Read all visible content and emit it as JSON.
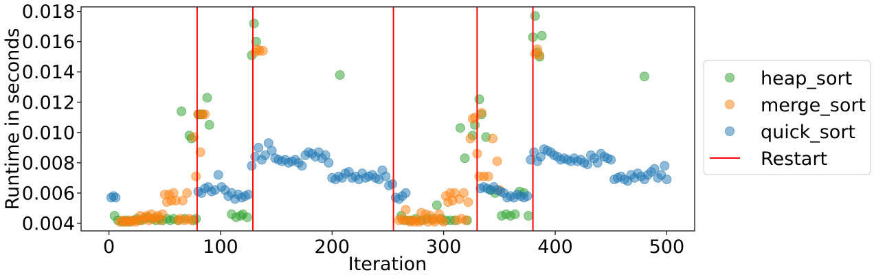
{
  "chart_data": {
    "type": "scatter",
    "title": "",
    "xlabel": "Iteration",
    "ylabel": "Runtime in seconds",
    "xlim": [
      -25,
      525
    ],
    "ylim": [
      0.0035,
      0.0183
    ],
    "xticks": [
      0,
      100,
      200,
      300,
      400,
      500
    ],
    "xtick_labels": [
      "0",
      "100",
      "200",
      "300",
      "400",
      "500"
    ],
    "yticks": [
      0.004,
      0.006,
      0.008,
      0.01,
      0.012,
      0.014,
      0.016,
      0.018
    ],
    "ytick_labels": [
      "0.004",
      "0.006",
      "0.008",
      "0.010",
      "0.012",
      "0.014",
      "0.016",
      "0.018"
    ],
    "grid": false,
    "legend_position": "outside-right",
    "series": [
      {
        "name": "heap_sort",
        "color": "#2ca02c",
        "x": [
          5,
          8,
          12,
          15,
          18,
          22,
          25,
          28,
          32,
          35,
          38,
          42,
          45,
          48,
          52,
          55,
          58,
          62,
          65,
          68,
          72,
          74,
          76,
          78,
          80,
          82,
          84,
          88,
          90,
          110,
          114,
          118,
          120,
          124,
          128,
          130,
          132,
          207,
          262,
          266,
          270,
          275,
          280,
          285,
          290,
          294,
          298,
          302,
          306,
          310,
          315,
          319,
          321,
          326,
          328,
          332,
          334,
          338,
          342,
          346,
          352,
          356,
          360,
          364,
          368,
          372,
          376,
          380,
          382,
          384,
          386,
          388,
          480
        ],
        "y": [
          0.0045,
          0.0042,
          0.0041,
          0.0042,
          0.0041,
          0.0042,
          0.0043,
          0.0042,
          0.0043,
          0.0044,
          0.0043,
          0.0042,
          0.0043,
          0.0042,
          0.0043,
          0.0042,
          0.0043,
          0.0042,
          0.0114,
          0.0043,
          0.0098,
          0.0096,
          0.0042,
          0.0043,
          0.0112,
          0.0112,
          0.0112,
          0.0123,
          0.0105,
          0.0046,
          0.0044,
          0.0045,
          0.0046,
          0.0044,
          0.0151,
          0.0172,
          0.016,
          0.0138,
          0.0045,
          0.0042,
          0.0042,
          0.0043,
          0.0042,
          0.0043,
          0.0043,
          0.0052,
          0.0043,
          0.0042,
          0.0042,
          0.0042,
          0.0103,
          0.0083,
          0.0042,
          0.0098,
          0.0105,
          0.0122,
          0.0112,
          0.0097,
          0.0062,
          0.006,
          0.0045,
          0.0046,
          0.0045,
          0.0046,
          0.0061,
          0.006,
          0.0045,
          0.0163,
          0.0177,
          0.0153,
          0.015,
          0.0164,
          0.0137
        ]
      },
      {
        "name": "merge_sort",
        "color": "#ff7f0e",
        "x": [
          10,
          12,
          14,
          16,
          18,
          20,
          22,
          24,
          26,
          28,
          30,
          32,
          34,
          36,
          38,
          40,
          42,
          44,
          46,
          48,
          50,
          52,
          54,
          56,
          58,
          60,
          62,
          64,
          66,
          68,
          70,
          72,
          74,
          76,
          78,
          80,
          82,
          84,
          86,
          131,
          133,
          135,
          138,
          260,
          262,
          264,
          266,
          268,
          270,
          272,
          274,
          276,
          278,
          280,
          282,
          284,
          286,
          288,
          290,
          292,
          294,
          296,
          298,
          300,
          302,
          304,
          306,
          308,
          310,
          312,
          314,
          316,
          318,
          320,
          322,
          324,
          326,
          328,
          330,
          332,
          334,
          336,
          340,
          344,
          348,
          350,
          382,
          384,
          386
        ],
        "y": [
          0.0041,
          0.0042,
          0.0041,
          0.0041,
          0.0042,
          0.0041,
          0.0042,
          0.0041,
          0.0042,
          0.0045,
          0.0042,
          0.0044,
          0.0045,
          0.0042,
          0.0046,
          0.0043,
          0.0044,
          0.0045,
          0.0042,
          0.0046,
          0.0059,
          0.0054,
          0.0059,
          0.0055,
          0.006,
          0.0055,
          0.0042,
          0.0043,
          0.0055,
          0.0042,
          0.006,
          0.0043,
          0.0042,
          0.0097,
          0.0071,
          0.0112,
          0.0087,
          0.0112,
          0.0112,
          0.0153,
          0.0155,
          0.0154,
          0.0154,
          0.0042,
          0.0043,
          0.0042,
          0.0049,
          0.0042,
          0.0041,
          0.0042,
          0.0041,
          0.0042,
          0.0041,
          0.0047,
          0.0042,
          0.0046,
          0.0041,
          0.0045,
          0.0042,
          0.0041,
          0.0043,
          0.0046,
          0.0042,
          0.0041,
          0.0058,
          0.0054,
          0.006,
          0.0055,
          0.006,
          0.0042,
          0.0056,
          0.0043,
          0.006,
          0.0042,
          0.0054,
          0.0096,
          0.0109,
          0.011,
          0.0086,
          0.0071,
          0.0113,
          0.0071,
          0.0071,
          0.0096,
          0.0081,
          0.0062,
          0.0152,
          0.0155,
          0.0151
        ]
      },
      {
        "name": "quick_sort",
        "color": "#1f77b4",
        "x": [
          2,
          4,
          6,
          80,
          83,
          86,
          89,
          92,
          95,
          98,
          101,
          104,
          107,
          110,
          113,
          116,
          119,
          122,
          125,
          128,
          131,
          134,
          137,
          140,
          143,
          146,
          149,
          152,
          155,
          158,
          161,
          164,
          167,
          170,
          173,
          176,
          179,
          182,
          185,
          188,
          191,
          194,
          197,
          200,
          203,
          206,
          209,
          212,
          215,
          218,
          221,
          224,
          227,
          230,
          233,
          236,
          239,
          242,
          245,
          248,
          251,
          254,
          257,
          260,
          263,
          266,
          333,
          336,
          339,
          342,
          345,
          348,
          351,
          354,
          357,
          360,
          363,
          366,
          369,
          372,
          375,
          378,
          381,
          384,
          387,
          390,
          393,
          396,
          399,
          402,
          405,
          408,
          411,
          414,
          417,
          420,
          423,
          426,
          429,
          432,
          435,
          438,
          441,
          444,
          447,
          450,
          453,
          456,
          459,
          462,
          465,
          468,
          471,
          474,
          477,
          480,
          483,
          486,
          489,
          492,
          495,
          498,
          500
        ],
        "y": [
          0.0057,
          0.0058,
          0.0057,
          0.0061,
          0.006,
          0.0063,
          0.0064,
          0.0061,
          0.0062,
          0.0072,
          0.0064,
          0.0062,
          0.0058,
          0.006,
          0.0056,
          0.0059,
          0.0057,
          0.0058,
          0.0059,
          0.0078,
          0.0084,
          0.009,
          0.0082,
          0.0085,
          0.0093,
          0.0088,
          0.0083,
          0.0082,
          0.0081,
          0.0082,
          0.008,
          0.0081,
          0.0082,
          0.008,
          0.0078,
          0.0085,
          0.0087,
          0.0086,
          0.0084,
          0.0087,
          0.0083,
          0.0085,
          0.008,
          0.007,
          0.0069,
          0.0071,
          0.007,
          0.0073,
          0.0074,
          0.007,
          0.0071,
          0.0069,
          0.0073,
          0.007,
          0.0071,
          0.0072,
          0.007,
          0.0069,
          0.0075,
          0.0071,
          0.0065,
          0.0066,
          0.0057,
          0.0056,
          0.0058,
          0.006,
          0.0063,
          0.0064,
          0.0063,
          0.0062,
          0.0064,
          0.0062,
          0.0061,
          0.006,
          0.0057,
          0.0058,
          0.0057,
          0.0059,
          0.0058,
          0.0057,
          0.0058,
          0.0082,
          0.0087,
          0.0081,
          0.0084,
          0.0089,
          0.0088,
          0.0087,
          0.0085,
          0.0084,
          0.0082,
          0.0083,
          0.0082,
          0.0081,
          0.0083,
          0.0081,
          0.0082,
          0.008,
          0.0079,
          0.0085,
          0.0083,
          0.008,
          0.0086,
          0.0084,
          0.0083,
          0.0082,
          0.0069,
          0.007,
          0.0071,
          0.0069,
          0.0068,
          0.0072,
          0.007,
          0.0073,
          0.0071,
          0.0069,
          0.0072,
          0.0074,
          0.0076,
          0.007,
          0.0072,
          0.0078,
          0.0069
        ]
      }
    ],
    "restart_lines": {
      "name": "Restart",
      "color": "#ff0000",
      "x": [
        79,
        129,
        255,
        330,
        380
      ]
    }
  }
}
